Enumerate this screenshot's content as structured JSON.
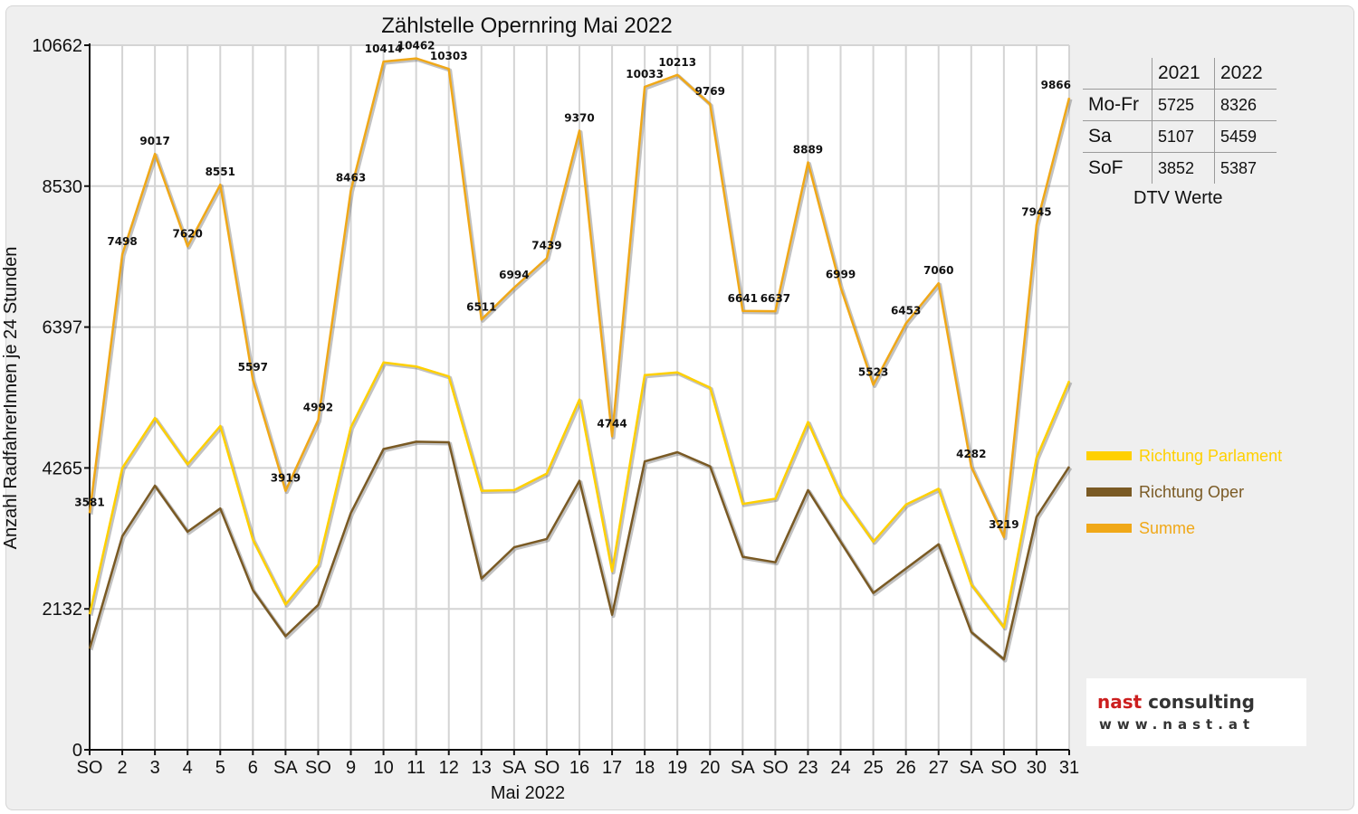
{
  "chart_data": {
    "type": "line",
    "title": "Zählstelle Opernring Mai 2022",
    "xlabel": "Mai 2022",
    "ylabel": "Anzahl RadfahrerInnen je 24 Stunden",
    "ylim": [
      0,
      10662
    ],
    "yticks": [
      0,
      2132,
      4265,
      6397,
      8530,
      10662
    ],
    "grid": true,
    "legend_position": "right",
    "categories": [
      "SO",
      "2",
      "3",
      "4",
      "5",
      "6",
      "SA",
      "SO",
      "9",
      "10",
      "11",
      "12",
      "13",
      "SA",
      "SO",
      "16",
      "17",
      "18",
      "19",
      "20",
      "SA",
      "SO",
      "23",
      "24",
      "25",
      "26",
      "27",
      "SA",
      "SO",
      "30",
      "31"
    ],
    "weekend_color": "#e00000",
    "weekend_indices": [
      0,
      7,
      14,
      21,
      25,
      28
    ],
    "series": [
      {
        "name": "Richtung Parlament",
        "color": "#ffd000",
        "values": [
          2050,
          4265,
          5020,
          4320,
          4900,
          3180,
          2200,
          2800,
          4880,
          5860,
          5800,
          5650,
          3920,
          3930,
          4180,
          5300,
          2700,
          5670,
          5710,
          5480,
          3720,
          3800,
          4960,
          3850,
          3150,
          3710,
          3950,
          2500,
          1850,
          4420,
          5580
        ]
      },
      {
        "name": "Richtung Oper",
        "color": "#7a5a24",
        "values": [
          1530,
          3233,
          3997,
          3300,
          3651,
          2417,
          1719,
          2192,
          3583,
          4551,
          4662,
          4653,
          2591,
          3064,
          3190,
          4070,
          2044,
          4363,
          4503,
          4289,
          2921,
          2837,
          3929,
          3149,
          2373,
          2743,
          3110,
          1782,
          1369,
          3525,
          4286
        ]
      },
      {
        "name": "Summe",
        "color": "#f0a818",
        "values": [
          3581,
          7498,
          9017,
          7620,
          8551,
          5597,
          3919,
          4992,
          8463,
          10414,
          10462,
          10303,
          6511,
          6994,
          7439,
          9370,
          4744,
          10033,
          10213,
          9769,
          6641,
          6637,
          8889,
          6999,
          5523,
          6453,
          7060,
          4282,
          3219,
          7945,
          9866
        ]
      }
    ],
    "data_labels_series": "Summe"
  },
  "dtv_table": {
    "years": [
      "2021",
      "2022"
    ],
    "rows": [
      {
        "label": "Mo-Fr",
        "v2021": "5725",
        "v2022": "8326"
      },
      {
        "label": "Sa",
        "v2021": "5107",
        "v2022": "5459"
      },
      {
        "label": "SoF",
        "v2021": "3852",
        "v2022": "5387"
      }
    ],
    "caption": "DTV Werte"
  },
  "logo": {
    "brand_part1": "nast",
    "brand_part2": " consulting",
    "website": "www.nast.at"
  }
}
